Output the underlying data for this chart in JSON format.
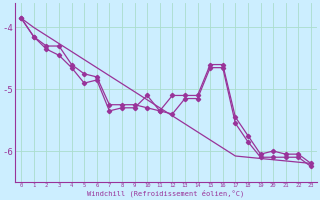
{
  "xlabel": "Windchill (Refroidissement éolien,°C)",
  "background_color": "#cceeff",
  "grid_color": "#aaddcc",
  "line_color": "#993399",
  "x": [
    0,
    1,
    2,
    3,
    4,
    5,
    6,
    7,
    8,
    9,
    10,
    11,
    12,
    13,
    14,
    15,
    16,
    17,
    18,
    19,
    20,
    21,
    22,
    23
  ],
  "trend": [
    -3.85,
    -4.0,
    -4.13,
    -4.26,
    -4.39,
    -4.52,
    -4.65,
    -4.78,
    -4.91,
    -5.04,
    -5.17,
    -5.3,
    -5.43,
    -5.56,
    -5.69,
    -5.82,
    -5.95,
    -6.08,
    -6.1,
    -6.12,
    -6.14,
    -6.16,
    -6.18,
    -6.2
  ],
  "line_b": [
    -3.85,
    -4.15,
    -4.3,
    -4.3,
    -4.6,
    -4.75,
    -4.8,
    -5.25,
    -5.25,
    -5.25,
    -5.3,
    -5.35,
    -5.1,
    -5.1,
    -5.1,
    -4.6,
    -4.6,
    -5.45,
    -5.75,
    -6.05,
    -6.0,
    -6.05,
    -6.05,
    -6.2
  ],
  "line_c": [
    -3.85,
    -4.15,
    -4.35,
    -4.45,
    -4.65,
    -4.9,
    -4.85,
    -5.35,
    -5.3,
    -5.3,
    -5.1,
    -5.35,
    -5.4,
    -5.15,
    -5.15,
    -4.65,
    -4.65,
    -5.55,
    -5.85,
    -6.1,
    -6.1,
    -6.1,
    -6.1,
    -6.25
  ],
  "ylim": [
    -6.5,
    -3.6
  ],
  "xlim": [
    -0.5,
    23.5
  ],
  "yticks": [
    -6,
    -5,
    -4
  ],
  "figsize": [
    3.2,
    2.0
  ],
  "dpi": 100
}
